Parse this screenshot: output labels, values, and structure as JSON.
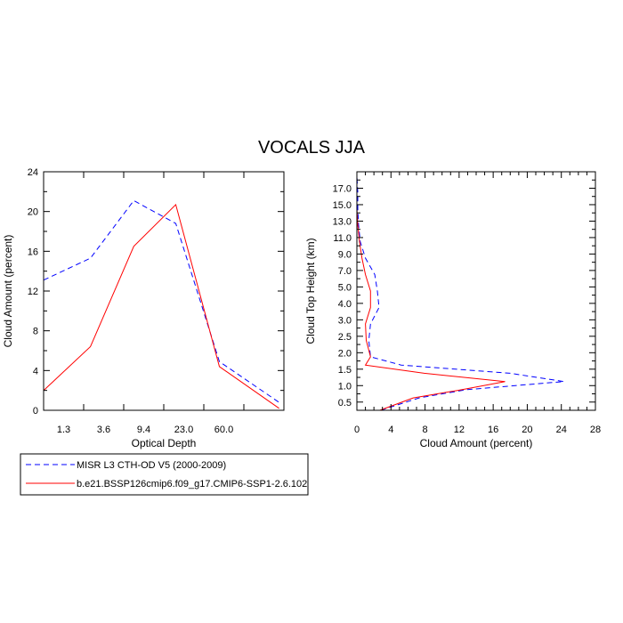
{
  "title": "VOCALS JJA",
  "colors": {
    "misr": "#0000ff",
    "model": "#ff0000",
    "axis": "#000000"
  },
  "legend": [
    {
      "name": "MISR L3 CTH-OD V5 (2000-2009)",
      "color": "#0000ff",
      "dash": true
    },
    {
      "name": "b.e21.BSSP126cmip6.f09_g17.CMIP6-SSP1-2.6.102",
      "color": "#ff0000",
      "dash": false
    }
  ],
  "chart_data": [
    {
      "type": "line",
      "xlabel": "Optical Depth",
      "ylabel": "Cloud Amount (percent)",
      "x_ticklabels": [
        "1.3",
        "3.6",
        "9.4",
        "23.0",
        "60.0"
      ],
      "x_index": [
        0,
        1,
        2,
        3,
        4,
        5,
        6
      ],
      "xlim": [
        0,
        6
      ],
      "ylim": [
        0,
        24
      ],
      "y_ticks": [
        0,
        4,
        8,
        12,
        16,
        20,
        24
      ],
      "series": [
        {
          "name": "MISR L3 CTH-OD V5 (2000-2009)",
          "values": [
            13.1,
            15.3,
            21.1,
            18.8,
            4.9,
            0.8
          ],
          "x": [
            0,
            1.17,
            2.25,
            3.3,
            4.39,
            5.88
          ]
        },
        {
          "name": "b.e21.BSSP126cmip6.f09_g17.CMIP6-SSP1-2.6.102",
          "values": [
            2.0,
            6.4,
            16.5,
            20.7,
            4.4,
            0.2
          ],
          "x": [
            0,
            1.17,
            2.25,
            3.3,
            4.39,
            5.88
          ]
        }
      ]
    },
    {
      "type": "line",
      "xlabel": "Cloud Amount (percent)",
      "ylabel": "Cloud Top Height (km)",
      "xlim": [
        0,
        28
      ],
      "x_ticks": [
        0,
        4,
        8,
        12,
        16,
        20,
        24,
        28
      ],
      "y_ticklabels": [
        "0.5",
        "1.0",
        "1.5",
        "2.0",
        "2.5",
        "3.0",
        "4.0",
        "5.0",
        "7.0",
        "9.0",
        "11.0",
        "13.0",
        "15.0",
        "17.0"
      ],
      "y_index_range": [
        0,
        14.5
      ],
      "series": [
        {
          "name": "MISR L3 CTH-OD V5 (2000-2009)",
          "y": [
            -0.25,
            0.5,
            1.0,
            1.5,
            2.0,
            2.5,
            3.0,
            4.0,
            5.0,
            6.0,
            7.0,
            8.0,
            9.0,
            10.0,
            11.0,
            12.0,
            13.0,
            14.0
          ],
          "values": [
            2.8,
            7.3,
            12.8,
            24.3,
            18.0,
            5.2,
            1.6,
            1.4,
            1.6,
            2.6,
            2.4,
            2.1,
            1.0,
            0.4,
            0.2,
            0.1,
            0.1,
            0.0
          ]
        },
        {
          "name": "b.e21.BSSP126cmip6.f09_g17.CMIP6-SSP1-2.6.102",
          "y": [
            -0.25,
            0.5,
            1.0,
            1.5,
            2.0,
            2.5,
            3.0,
            4.0,
            5.0,
            6.0,
            7.0,
            8.0,
            9.0,
            10.0,
            11.0,
            12.0,
            13.0,
            14.0
          ],
          "values": [
            2.7,
            6.6,
            12.3,
            17.4,
            7.9,
            1.0,
            1.6,
            1.1,
            1.0,
            1.6,
            1.6,
            1.0,
            0.6,
            0.3,
            0.1,
            0.0,
            0.0,
            0.0
          ]
        }
      ]
    }
  ]
}
